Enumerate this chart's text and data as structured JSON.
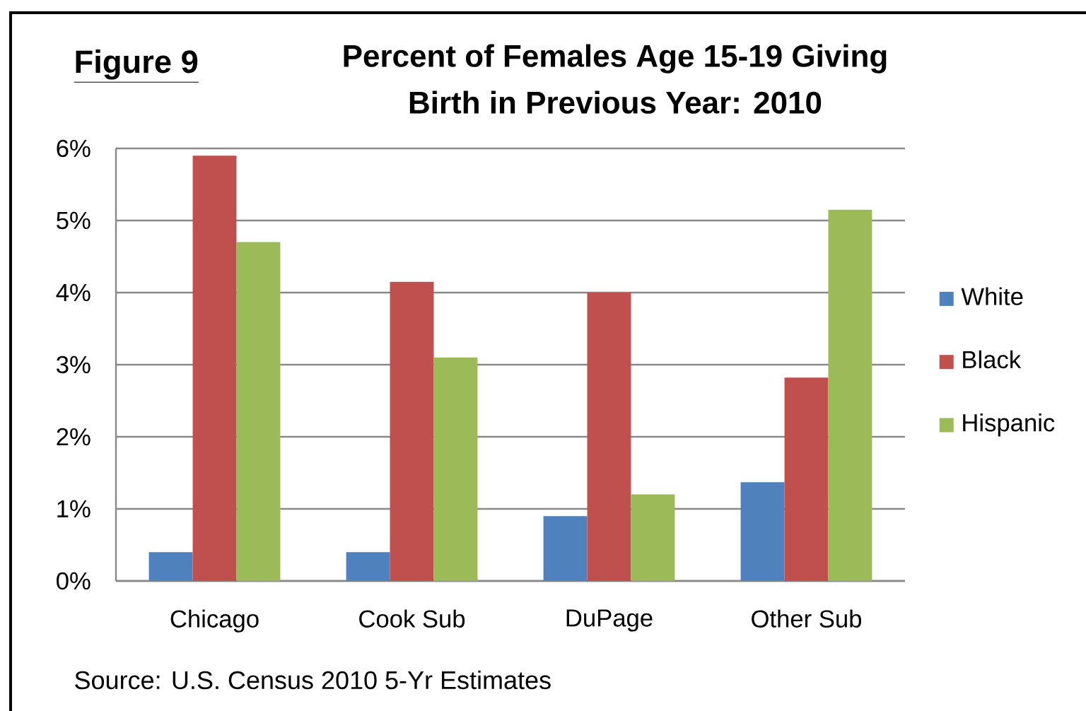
{
  "chart_data": {
    "type": "bar",
    "title": "Percent of Females Age 15-19 Giving Birth in Previous Year: 2010",
    "annotations": [
      "Figure 9",
      "Source: U.S. Census 2010 5-Yr Estimates"
    ],
    "categories": [
      "Chicago",
      "Cook Sub",
      "DuPage",
      "Other Sub"
    ],
    "series": [
      {
        "name": "White",
        "color": "#4f81bd",
        "values": [
          0.4,
          0.4,
          0.9,
          1.37
        ]
      },
      {
        "name": "Black",
        "color": "#c0504d",
        "values": [
          5.9,
          4.15,
          4.0,
          2.82
        ]
      },
      {
        "name": "Hispanic",
        "color": "#9bbb59",
        "values": [
          4.7,
          3.1,
          1.2,
          5.15
        ]
      }
    ],
    "ylim": [
      0,
      6
    ],
    "yticks": [
      {
        "value": 0,
        "label": "0%"
      },
      {
        "value": 1,
        "label": "1%"
      },
      {
        "value": 2,
        "label": "2%"
      },
      {
        "value": 3,
        "label": "3%"
      },
      {
        "value": 4,
        "label": "4%"
      },
      {
        "value": 5,
        "label": "5%"
      },
      {
        "value": 6,
        "label": "6%"
      }
    ],
    "grid": "y",
    "legend": "right"
  }
}
